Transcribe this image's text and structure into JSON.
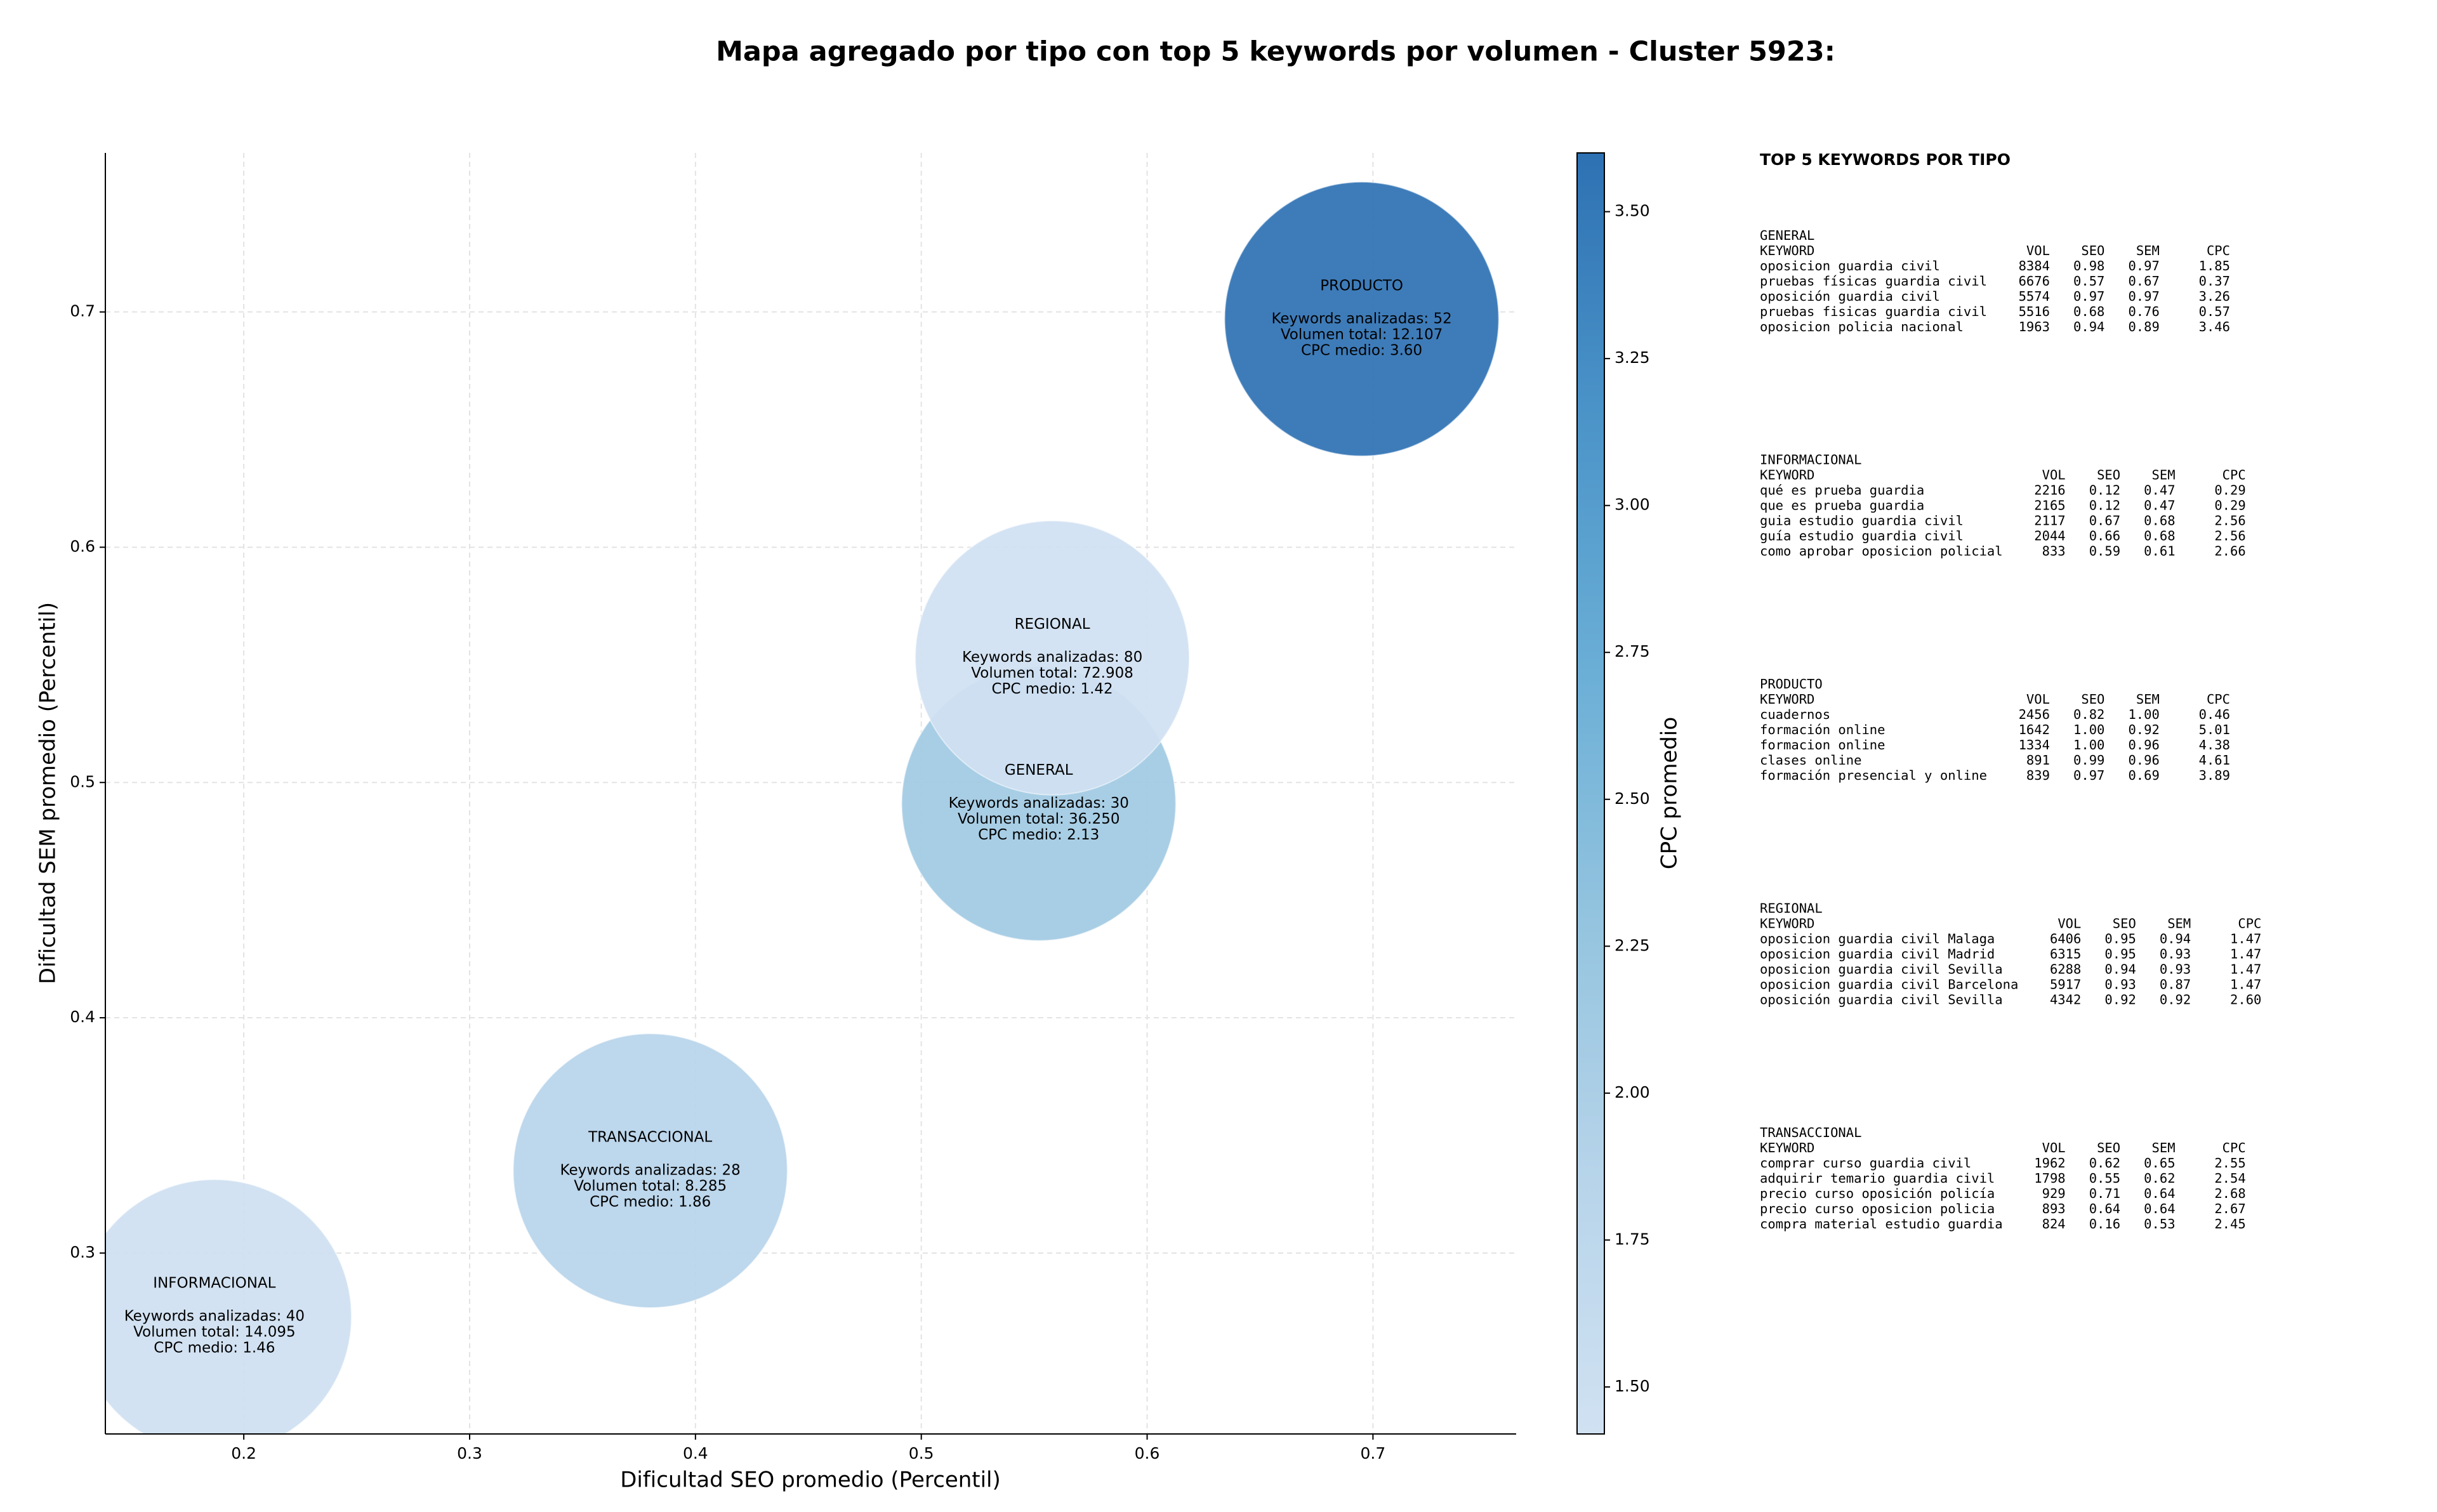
{
  "chart_data": {
    "type": "bubble",
    "title": "Mapa agregado por tipo con top 5 keywords por volumen - Cluster 5923:",
    "xlabel": "Dificultad SEO promedio (Percentil)",
    "ylabel": "Dificultad SEM promedio (Percentil)",
    "xlim": [
      0.1387,
      0.7634
    ],
    "ylim": [
      0.2231,
      0.7676
    ],
    "xticks": [
      0.2,
      0.3,
      0.4,
      0.5,
      0.6,
      0.7
    ],
    "yticks": [
      0.3,
      0.4,
      0.5,
      0.6,
      0.7
    ],
    "grid": true,
    "categories": [
      "GENERAL",
      "INFORMACIONAL",
      "PRODUCTO",
      "REGIONAL",
      "TRANSACCIONAL"
    ],
    "x": [
      0.552,
      0.187,
      0.695,
      0.558,
      0.38
    ],
    "values": [
      0.491,
      0.273,
      0.697,
      0.553,
      0.335
    ],
    "color_values": [
      2.13,
      1.46,
      3.6,
      1.42,
      1.86
    ],
    "annotations": [
      [
        "Keywords analizadas: 30",
        "Volumen total: 36.250",
        "CPC medio: 2.13"
      ],
      [
        "Keywords analizadas: 40",
        "Volumen total: 14.095",
        "CPC medio: 1.46"
      ],
      [
        "Keywords analizadas: 52",
        "Volumen total: 12.107",
        "CPC medio: 3.60"
      ],
      [
        "Keywords analizadas: 80",
        "Volumen total: 72.908",
        "CPC medio: 1.42"
      ],
      [
        "Keywords analizadas: 28",
        "Volumen total: 8.285",
        "CPC medio: 1.86"
      ]
    ],
    "colorbar": {
      "label": "CPC promedio",
      "lim": [
        1.42,
        3.6
      ],
      "ticks": [
        {
          "value": 1.5,
          "label": "1.50"
        },
        {
          "value": 1.75,
          "label": "1.75"
        },
        {
          "value": 2.0,
          "label": "2.00"
        },
        {
          "value": 2.25,
          "label": "2.25"
        },
        {
          "value": 2.5,
          "label": "2.50"
        },
        {
          "value": 2.75,
          "label": "2.75"
        },
        {
          "value": 3.0,
          "label": "3.00"
        },
        {
          "value": 3.25,
          "label": "3.25"
        },
        {
          "value": 3.5,
          "label": "3.50"
        }
      ],
      "colors": [
        "#d0e1f2",
        "#b7d4ea",
        "#94c4df",
        "#6aaed6",
        "#4a93c8",
        "#2e71b3"
      ]
    }
  },
  "panel": {
    "title": "TOP 5 KEYWORDS POR TIPO",
    "header": [
      "KEYWORD",
      "VOL",
      "SEO",
      "SEM",
      "CPC"
    ],
    "sections": [
      {
        "name": "GENERAL",
        "rows": [
          [
            "oposicion guardia civil",
            "8384",
            "0.98",
            "0.97",
            "1.85"
          ],
          [
            "pruebas físicas guardia civil",
            "6676",
            "0.57",
            "0.67",
            "0.37"
          ],
          [
            "oposición guardia civil",
            "5574",
            "0.97",
            "0.97",
            "3.26"
          ],
          [
            "pruebas fisicas guardia civil",
            "5516",
            "0.68",
            "0.76",
            "0.57"
          ],
          [
            "oposicion policia nacional",
            "1963",
            "0.94",
            "0.89",
            "3.46"
          ]
        ]
      },
      {
        "name": "INFORMACIONAL",
        "rows": [
          [
            "qué es prueba guardia",
            "2216",
            "0.12",
            "0.47",
            "0.29"
          ],
          [
            "que es prueba guardia",
            "2165",
            "0.12",
            "0.47",
            "0.29"
          ],
          [
            "guia estudio guardia civil",
            "2117",
            "0.67",
            "0.68",
            "2.56"
          ],
          [
            "guía estudio guardia civil",
            "2044",
            "0.66",
            "0.68",
            "2.56"
          ],
          [
            "como aprobar oposicion policial",
            "833",
            "0.59",
            "0.61",
            "2.66"
          ]
        ]
      },
      {
        "name": "PRODUCTO",
        "rows": [
          [
            "cuadernos",
            "2456",
            "0.82",
            "1.00",
            "0.46"
          ],
          [
            "formación online",
            "1642",
            "1.00",
            "0.92",
            "5.01"
          ],
          [
            "formacion online",
            "1334",
            "1.00",
            "0.96",
            "4.38"
          ],
          [
            "clases online",
            "891",
            "0.99",
            "0.96",
            "4.61"
          ],
          [
            "formación presencial y online",
            "839",
            "0.97",
            "0.69",
            "3.89"
          ]
        ]
      },
      {
        "name": "REGIONAL",
        "rows": [
          [
            "oposicion guardia civil Malaga",
            "6406",
            "0.95",
            "0.94",
            "1.47"
          ],
          [
            "oposicion guardia civil Madrid",
            "6315",
            "0.95",
            "0.93",
            "1.47"
          ],
          [
            "oposicion guardia civil Sevilla",
            "6288",
            "0.94",
            "0.93",
            "1.47"
          ],
          [
            "oposicion guardia civil Barcelona",
            "5917",
            "0.93",
            "0.87",
            "1.47"
          ],
          [
            "oposición guardia civil Sevilla",
            "4342",
            "0.92",
            "0.92",
            "2.60"
          ]
        ]
      },
      {
        "name": "TRANSACCIONAL",
        "rows": [
          [
            "comprar curso guardia civil",
            "1962",
            "0.62",
            "0.65",
            "2.55"
          ],
          [
            "adquirir temario guardia civil",
            "1798",
            "0.55",
            "0.62",
            "2.54"
          ],
          [
            "precio curso oposición policía",
            "929",
            "0.71",
            "0.64",
            "2.68"
          ],
          [
            "precio curso oposicion policia",
            "893",
            "0.64",
            "0.64",
            "2.67"
          ],
          [
            "compra material estudio guardia",
            "824",
            "0.16",
            "0.53",
            "2.45"
          ]
        ]
      }
    ]
  }
}
